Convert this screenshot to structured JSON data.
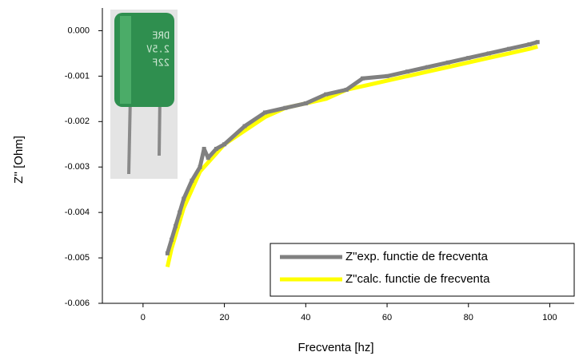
{
  "chart_data": {
    "type": "line",
    "x_label": "Frecventa [hz]",
    "y_label": "Z'' [Ohm]",
    "inset_text": [
      "DRE",
      "2.5V",
      "22F"
    ],
    "xlim": [
      -10,
      106
    ],
    "xticks": [
      0,
      20,
      40,
      60,
      80,
      100
    ],
    "ylim": [
      -0.006,
      0.0005
    ],
    "yticks": [
      {
        "value": 0,
        "label": "0.000"
      },
      {
        "value": -0.001,
        "label": "-0.001"
      },
      {
        "value": -0.002,
        "label": "-0.002"
      },
      {
        "value": -0.003,
        "label": "-0.003"
      },
      {
        "value": -0.004,
        "label": "-0.004"
      },
      {
        "value": -0.005,
        "label": "-0.005"
      },
      {
        "value": -0.006,
        "label": "-0.006"
      }
    ],
    "legend": "lower right",
    "series": [
      {
        "name": "Z\"exp. functie de frecventa",
        "color": "#808080",
        "x": [
          6,
          7,
          8,
          9,
          10,
          12,
          14,
          15,
          16,
          18,
          20,
          25,
          30,
          35,
          40,
          45,
          50,
          54,
          60,
          65,
          70,
          75,
          80,
          85,
          90,
          95,
          97
        ],
        "values": [
          -0.0049,
          -0.0046,
          -0.0043,
          -0.004,
          -0.0037,
          -0.0033,
          -0.003,
          -0.0026,
          -0.0028,
          -0.0026,
          -0.0025,
          -0.0021,
          -0.0018,
          -0.0017,
          -0.0016,
          -0.0014,
          -0.0013,
          -0.00105,
          -0.001,
          -0.0009,
          -0.0008,
          -0.0007,
          -0.0006,
          -0.0005,
          -0.0004,
          -0.0003,
          -0.00025
        ]
      },
      {
        "name": "Z\"calc. functie de frecventa",
        "color": "#ffff00",
        "x": [
          6,
          7,
          8,
          9,
          10,
          12,
          14,
          16,
          18,
          20,
          25,
          30,
          35,
          40,
          45,
          50,
          55,
          60,
          65,
          70,
          75,
          80,
          85,
          90,
          95,
          97
        ],
        "values": [
          -0.0052,
          -0.0048,
          -0.0045,
          -0.0042,
          -0.0039,
          -0.0035,
          -0.0031,
          -0.0029,
          -0.0027,
          -0.0025,
          -0.0022,
          -0.0019,
          -0.0017,
          -0.0016,
          -0.0015,
          -0.0013,
          -0.0012,
          -0.0011,
          -0.001,
          -0.0009,
          -0.0008,
          -0.0007,
          -0.0006,
          -0.0005,
          -0.0004,
          -0.00035
        ]
      }
    ]
  }
}
